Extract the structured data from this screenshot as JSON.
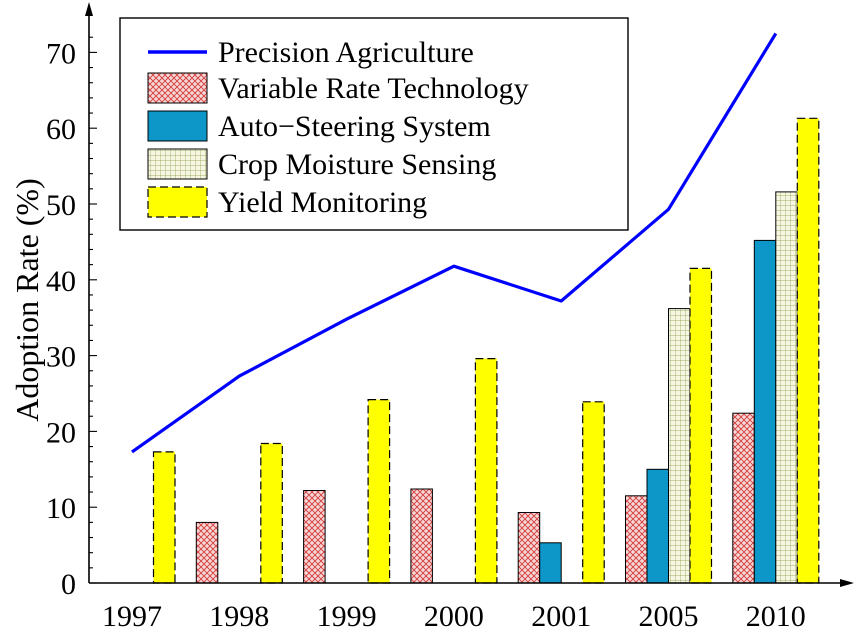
{
  "chart_data": {
    "type": "bar",
    "categories": [
      "1997",
      "1998",
      "1999",
      "2000",
      "2001",
      "2005",
      "2010"
    ],
    "title": "",
    "xlabel": "",
    "ylabel": "Adoption Rate (%)",
    "ylim": [
      0,
      75
    ],
    "yticks": [
      0,
      10,
      20,
      30,
      40,
      50,
      60,
      70
    ],
    "grid": false,
    "legend_position": "top-left",
    "line_series": {
      "name": "Precision Agriculture",
      "values": [
        17.3,
        27.3,
        34.8,
        41.8,
        37.2,
        49.3,
        72.5
      ],
      "color": "#0000ff"
    },
    "series": [
      {
        "name": "Variable Rate Technology",
        "values": [
          null,
          8.0,
          12.2,
          12.4,
          9.3,
          11.5,
          22.4
        ],
        "color": "#ee8a8a",
        "pattern": "crosshatch"
      },
      {
        "name": "Auto−Steering System",
        "values": [
          null,
          null,
          null,
          null,
          5.3,
          15.0,
          45.2
        ],
        "color": "#0d96c8",
        "pattern": "solid"
      },
      {
        "name": "Crop Moisture Sensing",
        "values": [
          null,
          null,
          null,
          null,
          null,
          36.2,
          51.6
        ],
        "color": "#f3f3dc",
        "pattern": "grid"
      },
      {
        "name": "Yield Monitoring",
        "values": [
          17.3,
          18.4,
          24.2,
          29.6,
          23.9,
          41.5,
          61.3
        ],
        "color": "#ffff00",
        "pattern": "dashed-border"
      }
    ]
  }
}
